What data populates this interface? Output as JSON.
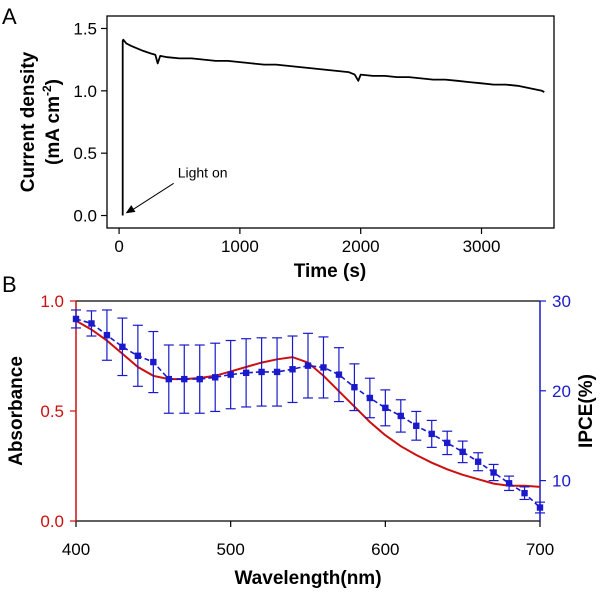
{
  "chart_data": [
    {
      "panel": "A",
      "type": "line",
      "xlabel": "Time (s)",
      "ylabel_line1": "Current density",
      "ylabel_line2_base": "(mA cm",
      "ylabel_line2_sup": "-2",
      "ylabel_line2_end": ")",
      "xlim": [
        -100,
        3600
      ],
      "ylim": [
        -0.1,
        1.6
      ],
      "xticks": [
        0,
        1000,
        2000,
        3000
      ],
      "yticks": [
        0.0,
        0.5,
        1.0,
        1.5
      ],
      "ytick_labels": [
        "0.0",
        "0.5",
        "1.0",
        "1.5"
      ],
      "annotation": {
        "text": "Light on",
        "x": 30,
        "y": 0.01
      },
      "color": "#000000",
      "series": [
        {
          "x": [
            30,
            30,
            35,
            60,
            100,
            150,
            200,
            260,
            300,
            320,
            340,
            400,
            500,
            600,
            700,
            800,
            900,
            1000,
            1100,
            1200,
            1300,
            1400,
            1500,
            1600,
            1700,
            1800,
            1900,
            1950,
            1980,
            2000,
            2100,
            2200,
            2300,
            2400,
            2500,
            2600,
            2700,
            2800,
            2900,
            3000,
            3100,
            3200,
            3300,
            3400,
            3500,
            3520
          ],
          "y": [
            0.0,
            1.4,
            1.41,
            1.38,
            1.36,
            1.34,
            1.32,
            1.3,
            1.29,
            1.22,
            1.28,
            1.27,
            1.26,
            1.26,
            1.25,
            1.24,
            1.24,
            1.23,
            1.22,
            1.21,
            1.21,
            1.2,
            1.19,
            1.18,
            1.17,
            1.16,
            1.15,
            1.13,
            1.08,
            1.13,
            1.12,
            1.12,
            1.11,
            1.11,
            1.1,
            1.09,
            1.09,
            1.08,
            1.07,
            1.06,
            1.05,
            1.05,
            1.04,
            1.02,
            1.0,
            0.99
          ]
        }
      ]
    },
    {
      "panel": "B",
      "type": "line",
      "xlabel": "Wavelength(nm)",
      "ylabel_left": "Absorbance",
      "ylabel_right": "IPCE(%)",
      "xlim": [
        400,
        700
      ],
      "ylim_left": [
        0.0,
        1.0
      ],
      "ylim_right": [
        5.5,
        30
      ],
      "xticks": [
        400,
        500,
        600,
        700
      ],
      "yticks_left": [
        0.0,
        0.5,
        1.0
      ],
      "ytick_labels_left": [
        "0.0",
        "0.5",
        "1.0"
      ],
      "yticks_right": [
        10,
        20,
        30
      ],
      "left_color": "#cc1010",
      "right_color": "#1a1acc",
      "series": [
        {
          "name": "Absorbance",
          "axis": "left",
          "x": [
            400,
            410,
            420,
            430,
            440,
            450,
            460,
            470,
            480,
            490,
            500,
            510,
            520,
            530,
            540,
            550,
            560,
            570,
            580,
            590,
            600,
            610,
            620,
            630,
            640,
            650,
            660,
            670,
            680,
            690,
            700
          ],
          "y": [
            0.91,
            0.87,
            0.82,
            0.76,
            0.7,
            0.66,
            0.645,
            0.645,
            0.65,
            0.66,
            0.68,
            0.7,
            0.72,
            0.735,
            0.745,
            0.72,
            0.66,
            0.59,
            0.52,
            0.45,
            0.39,
            0.34,
            0.3,
            0.265,
            0.235,
            0.21,
            0.19,
            0.17,
            0.16,
            0.16,
            0.155
          ]
        },
        {
          "name": "IPCE",
          "axis": "right",
          "x": [
            400,
            410,
            420,
            430,
            440,
            450,
            460,
            470,
            480,
            490,
            500,
            510,
            520,
            530,
            540,
            550,
            560,
            570,
            580,
            590,
            600,
            610,
            620,
            630,
            640,
            650,
            660,
            670,
            680,
            690,
            700
          ],
          "y": [
            28,
            27.5,
            26.2,
            24.9,
            23.9,
            23.2,
            21.3,
            21.3,
            21.3,
            21.5,
            21.8,
            22.0,
            22.1,
            22.1,
            22.4,
            22.8,
            22.6,
            21.8,
            20.4,
            19.2,
            18.1,
            17.2,
            16.1,
            15.2,
            14.2,
            13.2,
            12.1,
            10.9,
            9.7,
            8.6,
            7.0
          ],
          "err": [
            1.0,
            1.4,
            2.8,
            3.2,
            3.4,
            3.4,
            3.8,
            3.8,
            3.8,
            3.8,
            3.8,
            3.8,
            3.8,
            3.8,
            3.7,
            3.6,
            3.4,
            3.0,
            2.6,
            2.2,
            2.0,
            1.8,
            1.6,
            1.5,
            1.3,
            1.2,
            1.0,
            0.9,
            0.8,
            0.7,
            0.6
          ]
        }
      ]
    }
  ],
  "panels": {
    "a_tag": "A",
    "b_tag": "B"
  }
}
